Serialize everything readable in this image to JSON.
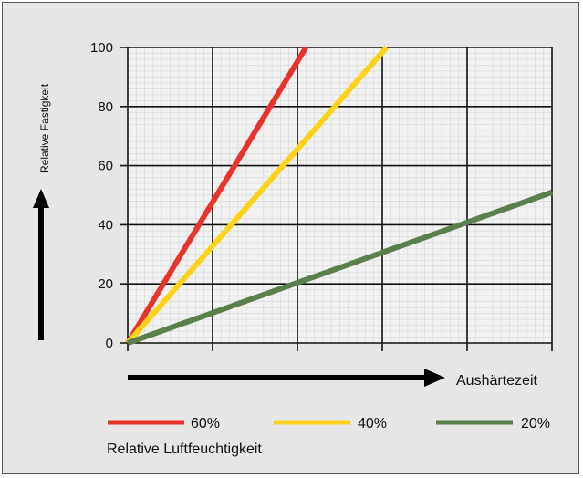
{
  "chart_data": {
    "type": "line",
    "ylabel": "Relative Fastigkeit",
    "xlabel": "Aushärtezeit",
    "legend_title": "Relative Luftfeuchtigkeit",
    "legend_position": "bottom",
    "grid": true,
    "yticks": [
      0,
      20,
      40,
      60,
      80,
      100
    ],
    "ylim": [
      0,
      100
    ],
    "xlim": [
      0,
      5
    ],
    "x_grid_count": 5,
    "series": [
      {
        "name": "60%",
        "color": "#e8342a",
        "x": [
          0,
          2.1
        ],
        "values": [
          0,
          100
        ]
      },
      {
        "name": "40%",
        "color": "#ffd21a",
        "x": [
          0,
          3.05
        ],
        "values": [
          0,
          100
        ]
      },
      {
        "name": "20%",
        "color": "#5c7f4e",
        "x": [
          0,
          5
        ],
        "values": [
          0,
          51
        ]
      }
    ]
  }
}
